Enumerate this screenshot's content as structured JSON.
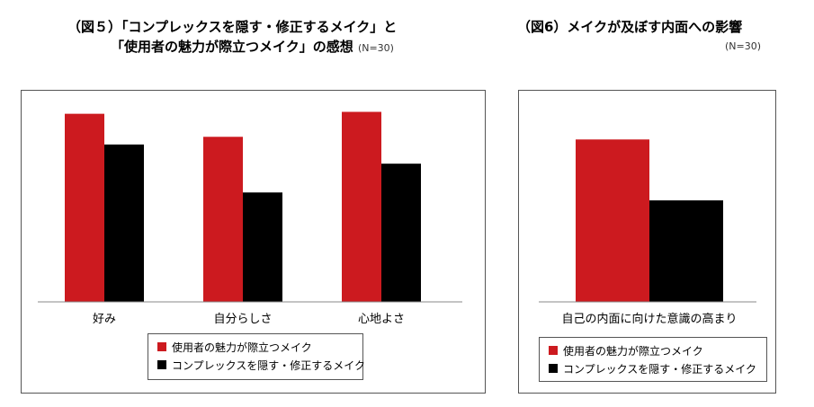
{
  "colors": {
    "series1": "#cc1a1f",
    "series2": "#000000"
  },
  "titles": {
    "fig5_line1": "（図５）「コンプレックスを隠す・修正するメイク」と",
    "fig5_line2": "「使用者の魅力が際立つメイク」の感想",
    "fig5_note": "(N=30)",
    "fig6_line1": "（図6）メイクが及ぼす内面への影響",
    "fig6_note": "(N=30)"
  },
  "chart_data": [
    {
      "type": "bar",
      "categories": [
        "好み",
        "自分らしさ",
        "心地よさ"
      ],
      "series": [
        {
          "name": "使用者の魅力が際立つメイク",
          "values": [
            98,
            86,
            99
          ]
        },
        {
          "name": "コンプレックスを隠す・修正するメイク",
          "values": [
            82,
            57,
            72
          ]
        }
      ],
      "ylim": [
        0,
        110
      ],
      "grid": false,
      "legend": "bottom"
    },
    {
      "type": "bar",
      "categories": [
        "自己の内面に向けた意識の高まり"
      ],
      "series": [
        {
          "name": "使用者の魅力が際立つメイク",
          "values": [
            80
          ]
        },
        {
          "name": "コンプレックスを隠す・修正するメイク",
          "values": [
            50
          ]
        }
      ],
      "ylim": [
        0,
        104
      ],
      "grid": false,
      "legend": "bottom"
    }
  ]
}
